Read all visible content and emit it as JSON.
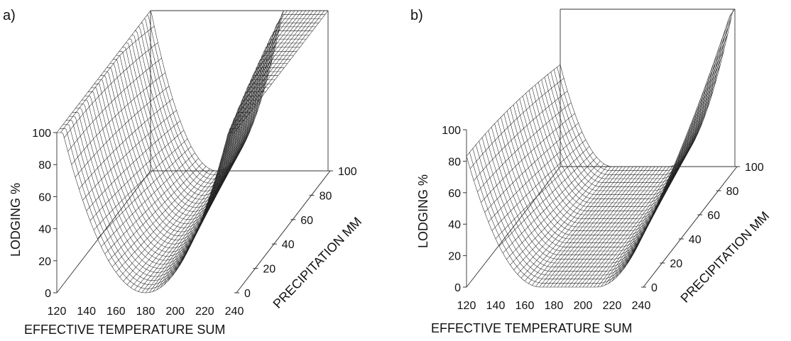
{
  "chart_data": [
    {
      "type": "surface",
      "panel_label": "a)",
      "xlabel": "EFFECTIVE TEMPERATURE SUM",
      "ylabel": "PRECIPITATION  MM",
      "zlabel": "LODGING  %",
      "x_ticks": [
        "120",
        "140",
        "160",
        "180",
        "200",
        "220",
        "240"
      ],
      "y_ticks": [
        "0",
        "20",
        "40",
        "60",
        "80",
        "100"
      ],
      "z_ticks": [
        "0",
        "20",
        "40",
        "60",
        "80",
        "100"
      ],
      "xlim": [
        120,
        240
      ],
      "ylim": [
        0,
        100
      ],
      "zlim": [
        0,
        100
      ],
      "surface_minimum_temperature_at_0mm": 180,
      "surface_minimum_temperature_at_100mm": 165,
      "surface_floor_width": 0,
      "grid": "wireframe mesh"
    },
    {
      "type": "surface",
      "panel_label": "b)",
      "xlabel": "EFFECTIVE TEMPERATURE SUM",
      "ylabel": "PRECIPITATION  MM",
      "zlabel": "LODGING  %",
      "x_ticks": [
        "120",
        "140",
        "160",
        "180",
        "200",
        "220",
        "240"
      ],
      "y_ticks": [
        "0",
        "20",
        "40",
        "60",
        "80",
        "100"
      ],
      "z_ticks": [
        "0",
        "20",
        "40",
        "60",
        "80",
        "100"
      ],
      "xlim": [
        120,
        240
      ],
      "ylim": [
        0,
        100
      ],
      "zlim": [
        0,
        100
      ],
      "surface_minimum_temperature_at_0mm": 190,
      "surface_minimum_temperature_at_100mm": 175,
      "surface_floor_width": 38,
      "grid": "wireframe mesh"
    }
  ]
}
